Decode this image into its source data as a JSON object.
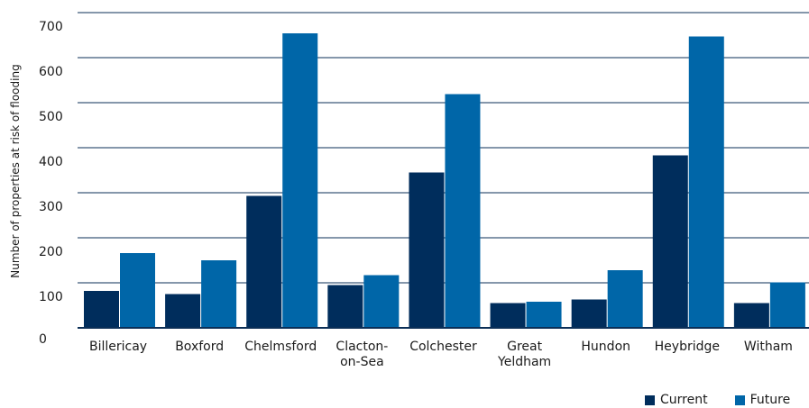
{
  "chart_data": {
    "type": "bar",
    "title": "",
    "xlabel": "",
    "ylabel": "Number of properties at risk of flooding",
    "ylim": [
      0,
      700
    ],
    "yticks": [
      0,
      100,
      200,
      300,
      400,
      500,
      600,
      700
    ],
    "grid": true,
    "legend_position": "bottom-right",
    "categories": [
      [
        "Billericay"
      ],
      [
        "Boxford"
      ],
      [
        "Chelmsford"
      ],
      [
        "Clacton-",
        "on-Sea"
      ],
      [
        "Colchester"
      ],
      [
        "Great",
        "Yeldham"
      ],
      [
        "Hundon"
      ],
      [
        "Heybridge"
      ],
      [
        "Witham"
      ]
    ],
    "series": [
      {
        "name": "Current",
        "color": "#002d5c",
        "values": [
          82,
          75,
          293,
          95,
          345,
          55,
          63,
          383,
          55
        ]
      },
      {
        "name": "Future",
        "color": "#0066a8",
        "values": [
          166,
          150,
          654,
          117,
          519,
          58,
          128,
          647,
          101
        ]
      }
    ]
  },
  "legend": {
    "current_label": "Current",
    "future_label": "Future"
  }
}
